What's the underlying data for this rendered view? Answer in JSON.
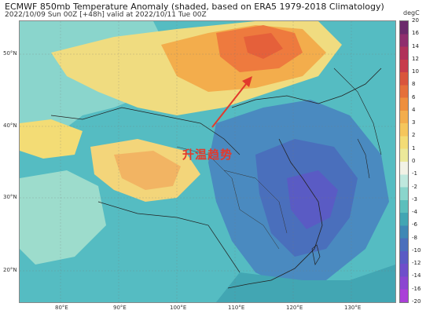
{
  "header": {
    "title": "ECMWF 850mb Temperature Anomaly (shaded, based on ERA5 1979-2018 Climatology)",
    "subtitle": "2022/10/09 Sun 00Z [+48h] valid at 2022/10/11 Tue 00Z"
  },
  "map": {
    "lat_labels": [
      "50°N",
      "40°N",
      "30°N",
      "20°N"
    ],
    "lon_labels": [
      "80°E",
      "90°E",
      "100°E",
      "110°E",
      "120°E",
      "130°E"
    ],
    "annotation": "升温趋势",
    "annotation_color": "#e23a2c"
  },
  "colorbar": {
    "unit": "degC",
    "ticks": [
      "20",
      "16",
      "14",
      "12",
      "10",
      "8",
      "6",
      "4",
      "3",
      "2",
      "1",
      "0",
      "-1",
      "-2",
      "-3",
      "-4",
      "-6",
      "-8",
      "-10",
      "-12",
      "-14",
      "-16",
      "-20"
    ],
    "colors": [
      "#6b2a6b",
      "#8f2e6e",
      "#b0325a",
      "#c73c4c",
      "#d9553c",
      "#e5703a",
      "#ee8f3e",
      "#f3ad4c",
      "#f5c65c",
      "#f3dc75",
      "#ece99a",
      "#f2f2e6",
      "#bfe8de",
      "#8ad5cc",
      "#5cbfbc",
      "#42a6b3",
      "#3f88b5",
      "#4a6fbc",
      "#5a5bc4",
      "#6f4ecb",
      "#8b45d1",
      "#aa3fd8"
    ]
  }
}
